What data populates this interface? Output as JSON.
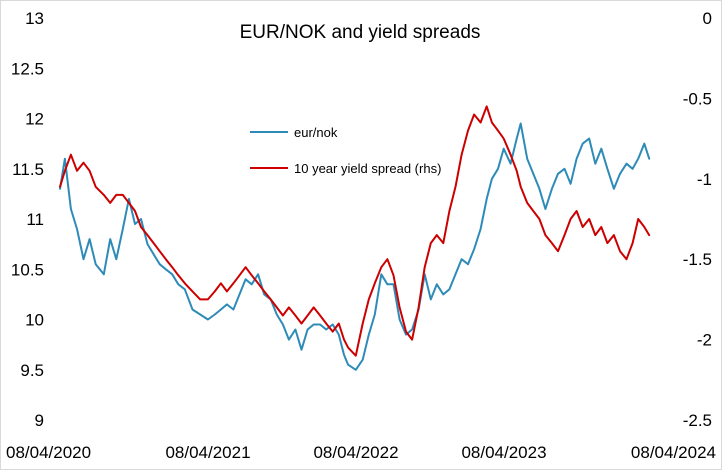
{
  "chart_data": {
    "type": "line",
    "title": "EUR/NOK and yield spreads",
    "xlabel": "",
    "ylabel": "",
    "y_left": {
      "min": 9,
      "max": 13,
      "ticks": [
        9,
        9.5,
        10,
        10.5,
        11,
        11.5,
        12,
        12.5,
        13
      ],
      "tick_labels": [
        "9",
        "9.5",
        "10",
        "10.5",
        "11",
        "11.5",
        "12",
        "12.5",
        "13"
      ]
    },
    "y_right": {
      "min": -2.5,
      "max": 0,
      "ticks": [
        -2.5,
        -2,
        -1.5,
        -1,
        -0.5,
        0
      ],
      "tick_labels": [
        "-2.5",
        "-2",
        "-1.5",
        "-1",
        "-0.5",
        "0"
      ]
    },
    "x_range": [
      "2020-04-08",
      "2024-04-08"
    ],
    "x_ticks": [
      "08/04/2020",
      "08/04/2021",
      "08/04/2022",
      "08/04/2023",
      "08/04/2024"
    ],
    "grid": false,
    "legend_position": "center-left-inside",
    "series": [
      {
        "name": "eur/nok",
        "axis": "left",
        "color": "#2E8BB8",
        "points": [
          [
            "2020-04-08",
            11.3
          ],
          [
            "2020-04-20",
            11.6
          ],
          [
            "2020-05-05",
            11.1
          ],
          [
            "2020-05-20",
            10.9
          ],
          [
            "2020-06-05",
            10.6
          ],
          [
            "2020-06-20",
            10.8
          ],
          [
            "2020-07-05",
            10.55
          ],
          [
            "2020-07-25",
            10.45
          ],
          [
            "2020-08-10",
            10.8
          ],
          [
            "2020-08-25",
            10.6
          ],
          [
            "2020-09-10",
            10.9
          ],
          [
            "2020-09-25",
            11.2
          ],
          [
            "2020-10-10",
            10.95
          ],
          [
            "2020-10-25",
            11.0
          ],
          [
            "2020-11-10",
            10.75
          ],
          [
            "2020-11-25",
            10.65
          ],
          [
            "2020-12-10",
            10.55
          ],
          [
            "2020-12-25",
            10.5
          ],
          [
            "2021-01-10",
            10.45
          ],
          [
            "2021-01-25",
            10.35
          ],
          [
            "2021-02-10",
            10.3
          ],
          [
            "2021-03-01",
            10.1
          ],
          [
            "2021-03-20",
            10.05
          ],
          [
            "2021-04-08",
            10.0
          ],
          [
            "2021-04-25",
            10.05
          ],
          [
            "2021-05-10",
            10.1
          ],
          [
            "2021-05-25",
            10.15
          ],
          [
            "2021-06-10",
            10.1
          ],
          [
            "2021-06-25",
            10.25
          ],
          [
            "2021-07-10",
            10.4
          ],
          [
            "2021-07-25",
            10.35
          ],
          [
            "2021-08-10",
            10.45
          ],
          [
            "2021-08-25",
            10.25
          ],
          [
            "2021-09-10",
            10.2
          ],
          [
            "2021-09-25",
            10.05
          ],
          [
            "2021-10-10",
            9.95
          ],
          [
            "2021-10-25",
            9.8
          ],
          [
            "2021-11-10",
            9.9
          ],
          [
            "2021-11-25",
            9.7
          ],
          [
            "2021-12-10",
            9.9
          ],
          [
            "2021-12-25",
            9.95
          ],
          [
            "2022-01-10",
            9.95
          ],
          [
            "2022-01-25",
            9.9
          ],
          [
            "2022-02-10",
            9.95
          ],
          [
            "2022-02-25",
            9.85
          ],
          [
            "2022-03-10",
            9.65
          ],
          [
            "2022-03-20",
            9.55
          ],
          [
            "2022-04-08",
            9.5
          ],
          [
            "2022-04-25",
            9.6
          ],
          [
            "2022-05-10",
            9.85
          ],
          [
            "2022-05-25",
            10.05
          ],
          [
            "2022-06-10",
            10.45
          ],
          [
            "2022-06-25",
            10.35
          ],
          [
            "2022-07-10",
            10.35
          ],
          [
            "2022-07-25",
            10.0
          ],
          [
            "2022-08-10",
            9.85
          ],
          [
            "2022-08-25",
            9.9
          ],
          [
            "2022-09-10",
            10.1
          ],
          [
            "2022-09-25",
            10.45
          ],
          [
            "2022-10-10",
            10.2
          ],
          [
            "2022-10-25",
            10.35
          ],
          [
            "2022-11-10",
            10.25
          ],
          [
            "2022-11-25",
            10.3
          ],
          [
            "2022-12-10",
            10.45
          ],
          [
            "2022-12-25",
            10.6
          ],
          [
            "2023-01-10",
            10.55
          ],
          [
            "2023-01-25",
            10.7
          ],
          [
            "2023-02-10",
            10.9
          ],
          [
            "2023-02-25",
            11.2
          ],
          [
            "2023-03-10",
            11.4
          ],
          [
            "2023-03-25",
            11.5
          ],
          [
            "2023-04-08",
            11.7
          ],
          [
            "2023-04-25",
            11.55
          ],
          [
            "2023-05-10",
            11.8
          ],
          [
            "2023-05-20",
            11.95
          ],
          [
            "2023-06-05",
            11.6
          ],
          [
            "2023-06-20",
            11.45
          ],
          [
            "2023-07-05",
            11.3
          ],
          [
            "2023-07-20",
            11.1
          ],
          [
            "2023-08-05",
            11.3
          ],
          [
            "2023-08-20",
            11.45
          ],
          [
            "2023-09-05",
            11.5
          ],
          [
            "2023-09-20",
            11.35
          ],
          [
            "2023-10-05",
            11.6
          ],
          [
            "2023-10-20",
            11.75
          ],
          [
            "2023-11-05",
            11.8
          ],
          [
            "2023-11-20",
            11.55
          ],
          [
            "2023-12-05",
            11.7
          ],
          [
            "2023-12-20",
            11.5
          ],
          [
            "2024-01-05",
            11.3
          ],
          [
            "2024-01-20",
            11.45
          ],
          [
            "2024-02-05",
            11.55
          ],
          [
            "2024-02-20",
            11.5
          ],
          [
            "2024-03-05",
            11.6
          ],
          [
            "2024-03-20",
            11.75
          ],
          [
            "2024-04-01",
            11.6
          ]
        ]
      },
      {
        "name": "10 year yield spread (rhs)",
        "axis": "right",
        "color": "#CC0000",
        "points": [
          [
            "2020-04-08",
            -1.05
          ],
          [
            "2020-04-20",
            -0.95
          ],
          [
            "2020-05-05",
            -0.85
          ],
          [
            "2020-05-20",
            -0.95
          ],
          [
            "2020-06-05",
            -0.9
          ],
          [
            "2020-06-20",
            -0.95
          ],
          [
            "2020-07-05",
            -1.05
          ],
          [
            "2020-07-25",
            -1.1
          ],
          [
            "2020-08-10",
            -1.15
          ],
          [
            "2020-08-25",
            -1.1
          ],
          [
            "2020-09-10",
            -1.1
          ],
          [
            "2020-09-25",
            -1.15
          ],
          [
            "2020-10-10",
            -1.2
          ],
          [
            "2020-10-25",
            -1.3
          ],
          [
            "2020-11-10",
            -1.35
          ],
          [
            "2020-11-25",
            -1.4
          ],
          [
            "2020-12-10",
            -1.45
          ],
          [
            "2020-12-25",
            -1.5
          ],
          [
            "2021-01-10",
            -1.55
          ],
          [
            "2021-01-25",
            -1.6
          ],
          [
            "2021-02-10",
            -1.65
          ],
          [
            "2021-03-01",
            -1.7
          ],
          [
            "2021-03-20",
            -1.75
          ],
          [
            "2021-04-08",
            -1.75
          ],
          [
            "2021-04-25",
            -1.7
          ],
          [
            "2021-05-10",
            -1.65
          ],
          [
            "2021-05-25",
            -1.7
          ],
          [
            "2021-06-10",
            -1.65
          ],
          [
            "2021-06-25",
            -1.6
          ],
          [
            "2021-07-10",
            -1.55
          ],
          [
            "2021-07-25",
            -1.6
          ],
          [
            "2021-08-10",
            -1.65
          ],
          [
            "2021-08-25",
            -1.7
          ],
          [
            "2021-09-10",
            -1.75
          ],
          [
            "2021-09-25",
            -1.8
          ],
          [
            "2021-10-10",
            -1.85
          ],
          [
            "2021-10-25",
            -1.8
          ],
          [
            "2021-11-10",
            -1.85
          ],
          [
            "2021-11-25",
            -1.9
          ],
          [
            "2021-12-10",
            -1.85
          ],
          [
            "2021-12-25",
            -1.8
          ],
          [
            "2022-01-10",
            -1.85
          ],
          [
            "2022-01-25",
            -1.9
          ],
          [
            "2022-02-10",
            -1.95
          ],
          [
            "2022-02-25",
            -1.9
          ],
          [
            "2022-03-10",
            -2.0
          ],
          [
            "2022-03-20",
            -2.05
          ],
          [
            "2022-04-08",
            -2.1
          ],
          [
            "2022-04-25",
            -1.9
          ],
          [
            "2022-05-10",
            -1.75
          ],
          [
            "2022-05-25",
            -1.65
          ],
          [
            "2022-06-10",
            -1.55
          ],
          [
            "2022-06-25",
            -1.5
          ],
          [
            "2022-07-10",
            -1.6
          ],
          [
            "2022-07-25",
            -1.8
          ],
          [
            "2022-08-10",
            -1.95
          ],
          [
            "2022-08-25",
            -2.0
          ],
          [
            "2022-09-10",
            -1.8
          ],
          [
            "2022-09-25",
            -1.55
          ],
          [
            "2022-10-10",
            -1.4
          ],
          [
            "2022-10-25",
            -1.35
          ],
          [
            "2022-11-10",
            -1.4
          ],
          [
            "2022-11-25",
            -1.2
          ],
          [
            "2022-12-10",
            -1.05
          ],
          [
            "2022-12-25",
            -0.85
          ],
          [
            "2023-01-10",
            -0.7
          ],
          [
            "2023-01-25",
            -0.6
          ],
          [
            "2023-02-10",
            -0.65
          ],
          [
            "2023-02-25",
            -0.55
          ],
          [
            "2023-03-10",
            -0.65
          ],
          [
            "2023-03-25",
            -0.7
          ],
          [
            "2023-04-08",
            -0.75
          ],
          [
            "2023-04-25",
            -0.85
          ],
          [
            "2023-05-10",
            -0.95
          ],
          [
            "2023-05-20",
            -1.05
          ],
          [
            "2023-06-05",
            -1.15
          ],
          [
            "2023-06-20",
            -1.2
          ],
          [
            "2023-07-05",
            -1.25
          ],
          [
            "2023-07-20",
            -1.35
          ],
          [
            "2023-08-05",
            -1.4
          ],
          [
            "2023-08-20",
            -1.45
          ],
          [
            "2023-09-05",
            -1.35
          ],
          [
            "2023-09-20",
            -1.25
          ],
          [
            "2023-10-05",
            -1.2
          ],
          [
            "2023-10-20",
            -1.3
          ],
          [
            "2023-11-05",
            -1.25
          ],
          [
            "2023-11-20",
            -1.35
          ],
          [
            "2023-12-05",
            -1.3
          ],
          [
            "2023-12-20",
            -1.4
          ],
          [
            "2024-01-05",
            -1.35
          ],
          [
            "2024-01-20",
            -1.45
          ],
          [
            "2024-02-05",
            -1.5
          ],
          [
            "2024-02-20",
            -1.4
          ],
          [
            "2024-03-05",
            -1.25
          ],
          [
            "2024-03-20",
            -1.3
          ],
          [
            "2024-04-01",
            -1.35
          ]
        ]
      }
    ]
  }
}
